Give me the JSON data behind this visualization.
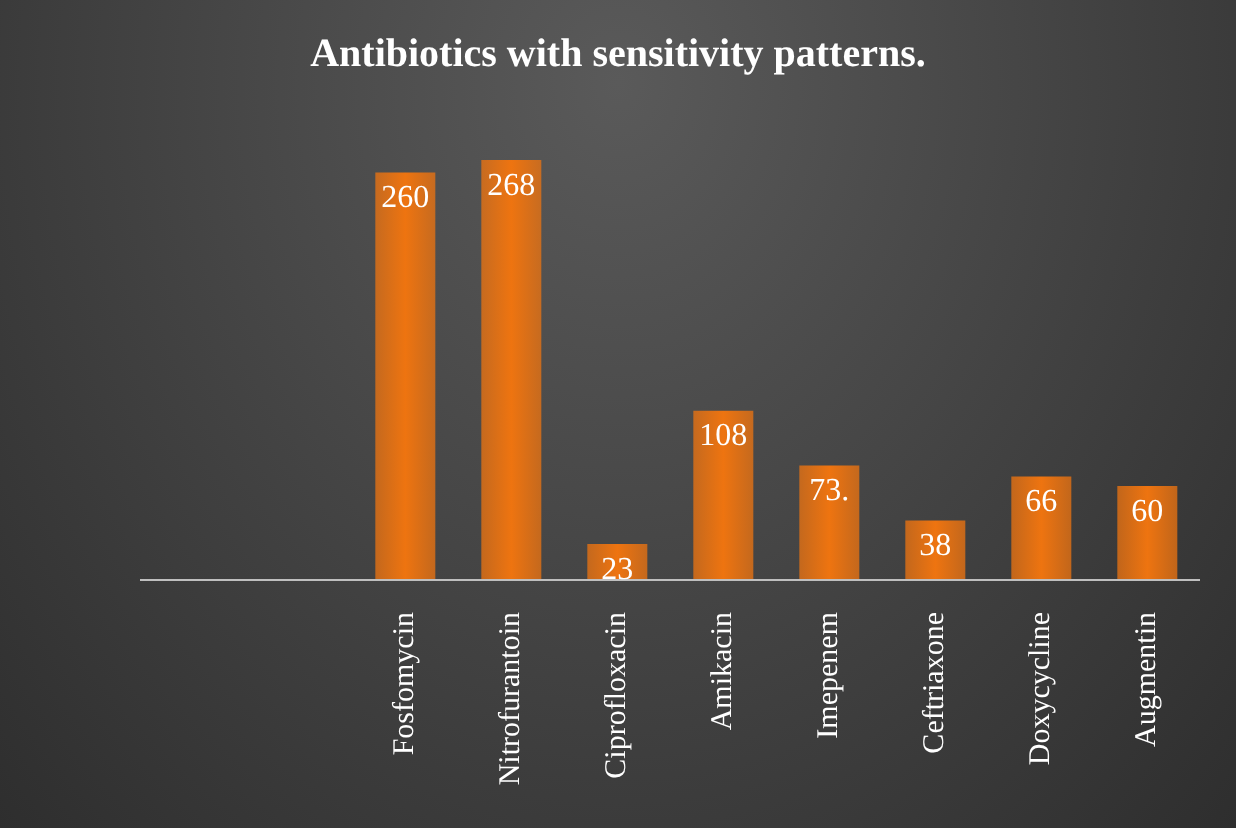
{
  "chart_data": {
    "type": "bar",
    "title": "Antibiotics with sensitivity patterns.",
    "categories": [
      null,
      null,
      "Fosfomycin",
      "Nitrofurantoin",
      "Ciprofloxacin",
      "Amikacin",
      "Imepenem",
      "Ceftriaxone",
      "Doxycycline",
      "Augmentin"
    ],
    "values": [
      null,
      null,
      260,
      268,
      23,
      108,
      73,
      38,
      66,
      60
    ],
    "value_labels": [
      null,
      null,
      "260",
      "268",
      "23",
      "108",
      "73.",
      "38",
      "66",
      "60"
    ],
    "color": "#ee7410",
    "tick_labels": "x",
    "legend": false
  }
}
